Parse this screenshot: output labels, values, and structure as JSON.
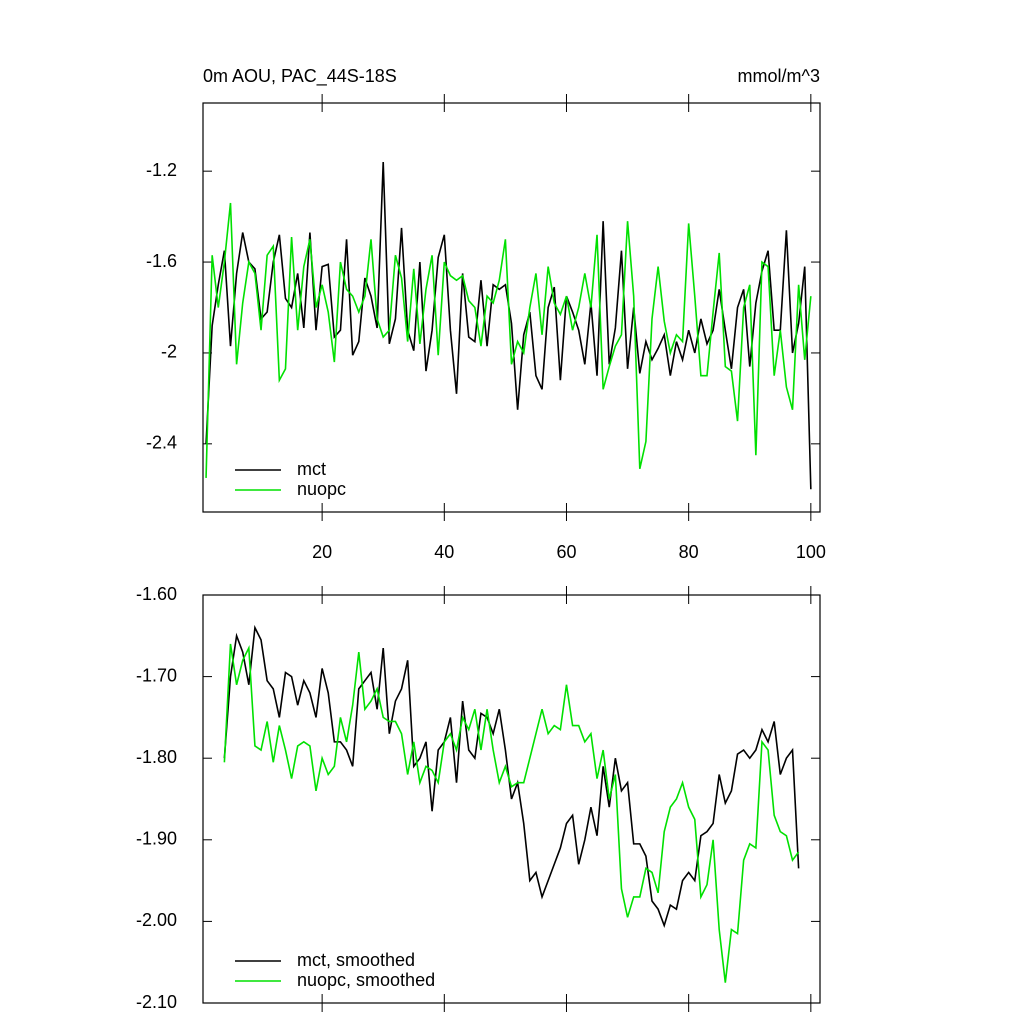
{
  "chart_data": [
    {
      "type": "line",
      "title": "0m AOU, PAC_44S-18S",
      "units": "mmol/m^3",
      "xlim": [
        0.5,
        101.5
      ],
      "xticks": [
        20,
        40,
        60,
        80,
        100
      ],
      "xticklabels": true,
      "ylim": [
        -2.7,
        -0.9
      ],
      "yticks": [
        -1.2,
        -1.6,
        -2.0,
        -2.4
      ],
      "legend": "lower left",
      "x": [
        1,
        2,
        3,
        4,
        5,
        6,
        7,
        8,
        9,
        10,
        11,
        12,
        13,
        14,
        15,
        16,
        17,
        18,
        19,
        20,
        21,
        22,
        23,
        24,
        25,
        26,
        27,
        28,
        29,
        30,
        31,
        32,
        33,
        34,
        35,
        36,
        37,
        38,
        39,
        40,
        41,
        42,
        43,
        44,
        45,
        46,
        47,
        48,
        49,
        50,
        51,
        52,
        53,
        54,
        55,
        56,
        57,
        58,
        59,
        60,
        61,
        62,
        63,
        64,
        65,
        66,
        67,
        68,
        69,
        70,
        71,
        72,
        73,
        74,
        75,
        76,
        77,
        78,
        79,
        80,
        81,
        82,
        83,
        84,
        85,
        86,
        87,
        88,
        89,
        90,
        91,
        92,
        93,
        94,
        95,
        96,
        97,
        98,
        99,
        100
      ],
      "series": [
        {
          "name": "mct",
          "color": "#000000",
          "values": [
            -2.4,
            -1.88,
            -1.7,
            -1.55,
            -1.97,
            -1.65,
            -1.47,
            -1.6,
            -1.63,
            -1.85,
            -1.82,
            -1.6,
            -1.48,
            -1.76,
            -1.8,
            -1.65,
            -1.89,
            -1.47,
            -1.9,
            -1.62,
            -1.61,
            -1.93,
            -1.9,
            -1.5,
            -2.01,
            -1.95,
            -1.67,
            -1.75,
            -1.89,
            -1.16,
            -1.96,
            -1.85,
            -1.45,
            -1.9,
            -1.99,
            -1.6,
            -2.08,
            -1.9,
            -1.58,
            -1.48,
            -1.9,
            -2.18,
            -1.65,
            -1.93,
            -1.95,
            -1.68,
            -1.97,
            -1.7,
            -1.72,
            -1.7,
            -1.87,
            -2.25,
            -1.92,
            -1.82,
            -2.1,
            -2.16,
            -1.8,
            -1.71,
            -2.12,
            -1.75,
            -1.82,
            -1.9,
            -2.05,
            -1.78,
            -2.1,
            -1.42,
            -2.05,
            -1.89,
            -1.55,
            -2.07,
            -1.8,
            -2.09,
            -1.95,
            -2.03,
            -1.98,
            -1.92,
            -2.1,
            -1.95,
            -2.03,
            -1.9,
            -2.0,
            -1.85,
            -1.96,
            -1.9,
            -1.72,
            -1.9,
            -2.07,
            -1.8,
            -1.72,
            -2.06,
            -1.78,
            -1.64,
            -1.55,
            -1.9,
            -1.9,
            -1.46,
            -2.0,
            -1.87,
            -1.62,
            -2.6
          ]
        },
        {
          "name": "nuopc",
          "color": "#00e000",
          "values": [
            -2.55,
            -1.57,
            -1.8,
            -1.6,
            -1.34,
            -2.05,
            -1.78,
            -1.6,
            -1.65,
            -1.9,
            -1.57,
            -1.53,
            -2.12,
            -2.07,
            -1.49,
            -1.9,
            -1.62,
            -1.5,
            -1.8,
            -1.7,
            -1.82,
            -2.04,
            -1.6,
            -1.72,
            -1.75,
            -1.82,
            -1.75,
            -1.5,
            -1.85,
            -1.93,
            -1.9,
            -1.57,
            -1.67,
            -1.95,
            -1.63,
            -1.96,
            -1.72,
            -1.57,
            -2.01,
            -1.6,
            -1.66,
            -1.68,
            -1.66,
            -1.77,
            -1.8,
            -1.97,
            -1.75,
            -1.78,
            -1.68,
            -1.5,
            -2.05,
            -1.95,
            -2.0,
            -1.8,
            -1.65,
            -1.92,
            -1.62,
            -1.78,
            -1.83,
            -1.75,
            -1.9,
            -1.8,
            -1.65,
            -1.8,
            -1.48,
            -2.16,
            -2.06,
            -1.97,
            -1.92,
            -1.42,
            -1.75,
            -2.51,
            -2.39,
            -1.85,
            -1.62,
            -1.86,
            -2.0,
            -1.92,
            -1.95,
            -1.43,
            -1.75,
            -2.1,
            -2.1,
            -1.82,
            -1.56,
            -2.06,
            -2.08,
            -2.3,
            -1.8,
            -1.7,
            -2.45,
            -1.6,
            -1.62,
            -2.1,
            -1.9,
            -2.15,
            -2.25,
            -1.7,
            -2.03,
            -1.75
          ]
        }
      ]
    },
    {
      "type": "line",
      "xlim": [
        0.5,
        101.5
      ],
      "xticks": [
        20,
        40,
        60,
        80,
        100
      ],
      "xticklabels": false,
      "ylim": [
        -2.1,
        -1.6
      ],
      "yticks": [
        {
          "value": -1.6,
          "label": "-1.60"
        },
        {
          "value": -1.7,
          "label": "-1.70"
        },
        {
          "value": -1.8,
          "label": "-1.80"
        },
        {
          "value": -1.9,
          "label": "-1.90"
        },
        {
          "value": -2.0,
          "label": "-2.00"
        },
        {
          "value": -2.1,
          "label": "-2.10"
        }
      ],
      "legend": "lower left",
      "x": [
        4,
        5,
        6,
        7,
        8,
        9,
        10,
        11,
        12,
        13,
        14,
        15,
        16,
        17,
        18,
        19,
        20,
        21,
        22,
        23,
        24,
        25,
        26,
        27,
        28,
        29,
        30,
        31,
        32,
        33,
        34,
        35,
        36,
        37,
        38,
        39,
        40,
        41,
        42,
        43,
        44,
        45,
        46,
        47,
        48,
        49,
        50,
        51,
        52,
        53,
        54,
        55,
        56,
        57,
        58,
        59,
        60,
        61,
        62,
        63,
        64,
        65,
        66,
        67,
        68,
        69,
        70,
        71,
        72,
        73,
        74,
        75,
        76,
        77,
        78,
        79,
        80,
        81,
        82,
        83,
        84,
        85,
        86,
        87,
        88,
        89,
        90,
        91,
        92,
        93,
        94,
        95,
        96,
        97,
        98
      ],
      "series": [
        {
          "name": "mct, smoothed",
          "color": "#000000",
          "values": [
            -1.8,
            -1.7,
            -1.65,
            -1.67,
            -1.71,
            -1.64,
            -1.655,
            -1.705,
            -1.715,
            -1.75,
            -1.695,
            -1.7,
            -1.735,
            -1.705,
            -1.72,
            -1.75,
            -1.69,
            -1.72,
            -1.78,
            -1.78,
            -1.79,
            -1.81,
            -1.715,
            -1.705,
            -1.695,
            -1.74,
            -1.665,
            -1.77,
            -1.73,
            -1.715,
            -1.68,
            -1.81,
            -1.8,
            -1.78,
            -1.865,
            -1.79,
            -1.78,
            -1.75,
            -1.83,
            -1.73,
            -1.79,
            -1.8,
            -1.745,
            -1.75,
            -1.77,
            -1.74,
            -1.79,
            -1.85,
            -1.83,
            -1.88,
            -1.95,
            -1.94,
            -1.97,
            -1.95,
            -1.93,
            -1.91,
            -1.88,
            -1.87,
            -1.93,
            -1.9,
            -1.86,
            -1.895,
            -1.81,
            -1.86,
            -1.8,
            -1.84,
            -1.83,
            -1.905,
            -1.905,
            -1.92,
            -1.975,
            -1.985,
            -2.005,
            -1.98,
            -1.985,
            -1.95,
            -1.94,
            -1.95,
            -1.895,
            -1.89,
            -1.88,
            -1.82,
            -1.855,
            -1.84,
            -1.795,
            -1.79,
            -1.8,
            -1.79,
            -1.765,
            -1.78,
            -1.755,
            -1.82,
            -1.8,
            -1.79,
            -1.935
          ]
        },
        {
          "name": "nuopc, smoothed",
          "color": "#00e000",
          "values": [
            -1.805,
            -1.66,
            -1.71,
            -1.68,
            -1.665,
            -1.785,
            -1.79,
            -1.755,
            -1.805,
            -1.76,
            -1.79,
            -1.825,
            -1.785,
            -1.78,
            -1.785,
            -1.84,
            -1.8,
            -1.82,
            -1.81,
            -1.75,
            -1.78,
            -1.735,
            -1.67,
            -1.74,
            -1.73,
            -1.715,
            -1.75,
            -1.755,
            -1.755,
            -1.77,
            -1.82,
            -1.78,
            -1.83,
            -1.81,
            -1.815,
            -1.83,
            -1.78,
            -1.77,
            -1.79,
            -1.75,
            -1.765,
            -1.74,
            -1.79,
            -1.74,
            -1.79,
            -1.83,
            -1.81,
            -1.835,
            -1.83,
            -1.83,
            -1.8,
            -1.77,
            -1.74,
            -1.77,
            -1.76,
            -1.765,
            -1.71,
            -1.76,
            -1.76,
            -1.78,
            -1.77,
            -1.825,
            -1.79,
            -1.85,
            -1.82,
            -1.96,
            -1.995,
            -1.97,
            -1.97,
            -1.935,
            -1.94,
            -1.965,
            -1.89,
            -1.86,
            -1.85,
            -1.83,
            -1.86,
            -1.875,
            -1.97,
            -1.955,
            -1.9,
            -2.01,
            -2.075,
            -2.01,
            -2.015,
            -1.925,
            -1.905,
            -1.91,
            -1.78,
            -1.79,
            -1.87,
            -1.89,
            -1.895,
            -1.925,
            -1.915
          ]
        }
      ]
    }
  ]
}
